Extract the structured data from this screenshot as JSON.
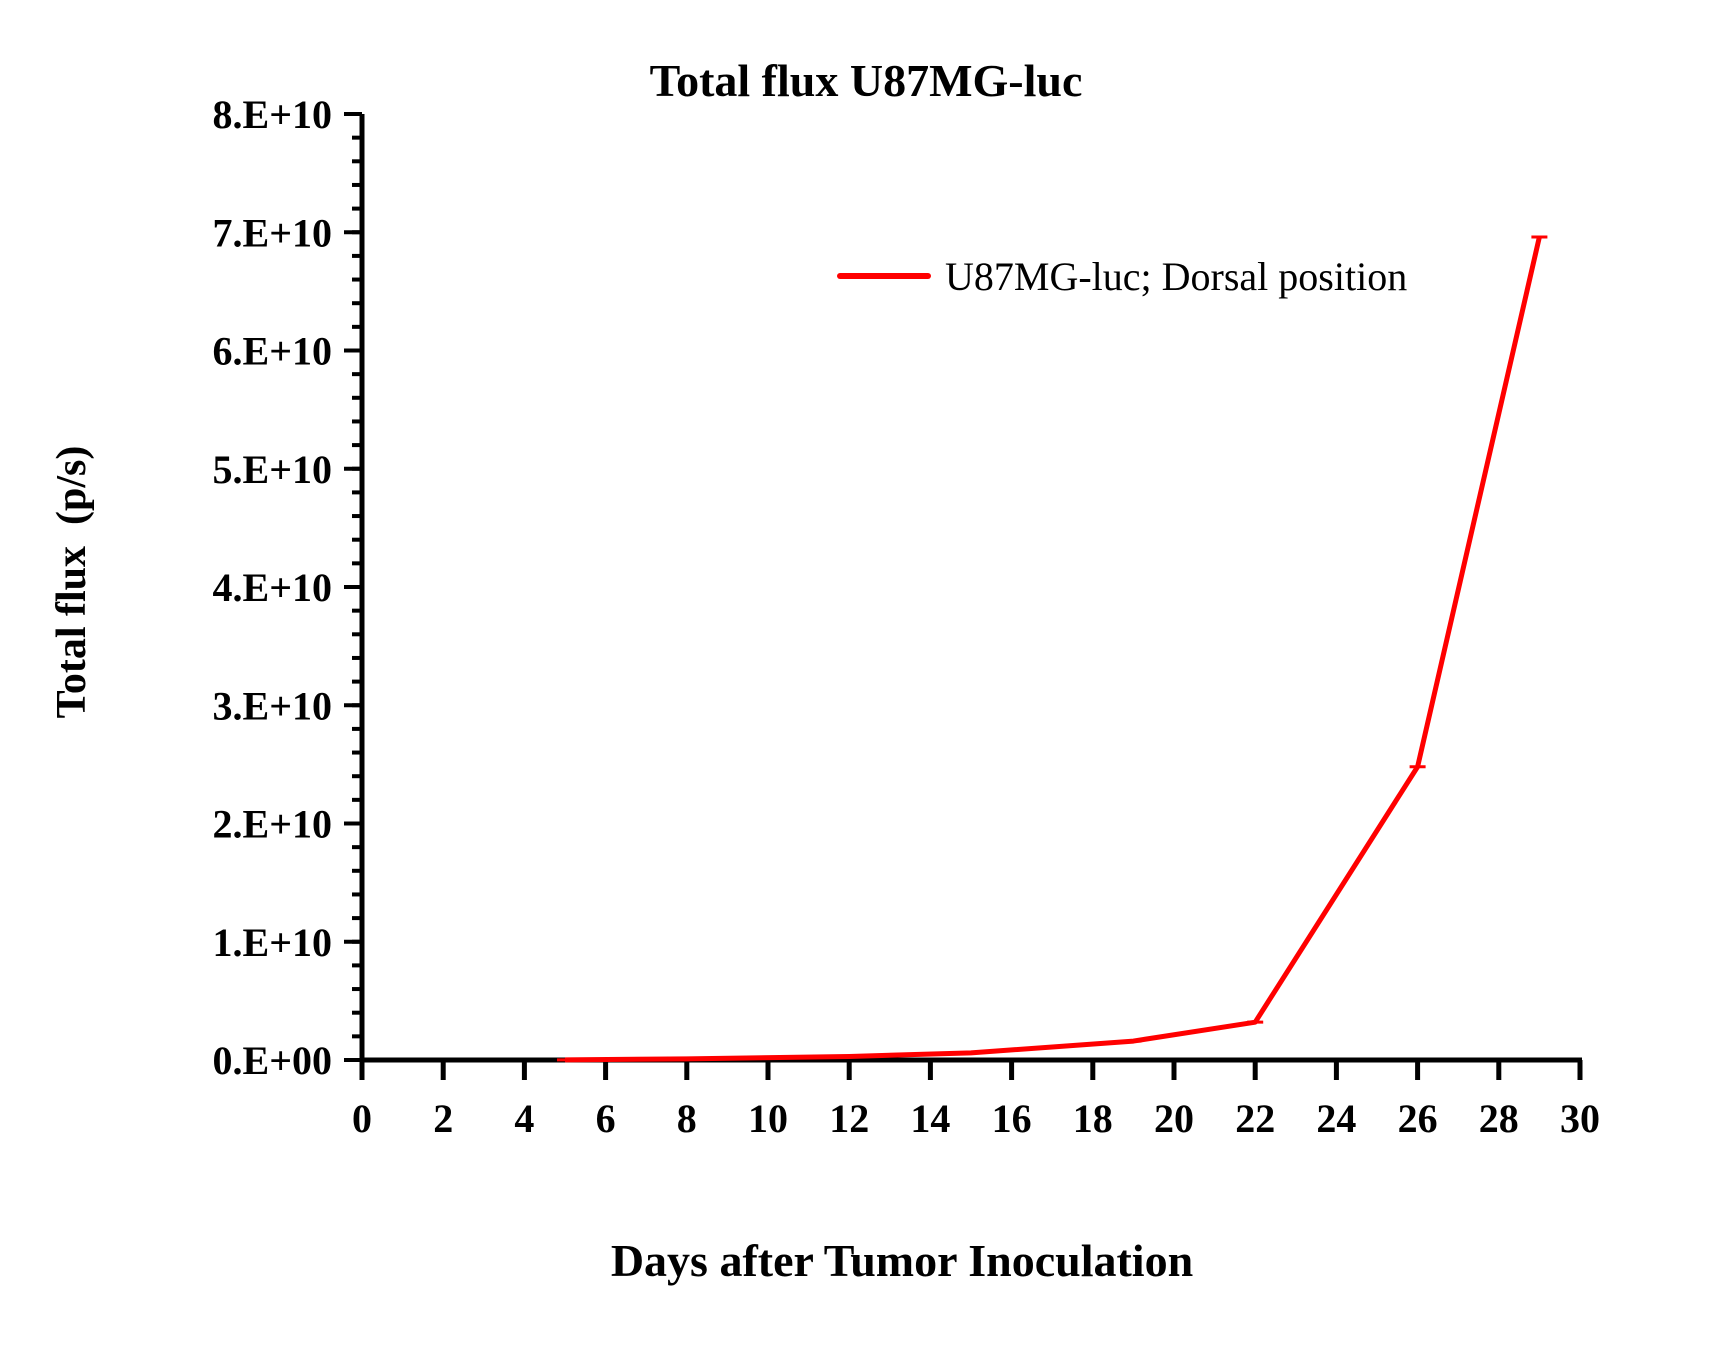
{
  "chart_data": {
    "type": "line",
    "title": "Total flux U87MG-luc",
    "xlabel": "Days after Tumor Inoculation",
    "ylabel": "Total flux  (p/s)",
    "xlim": [
      0,
      30
    ],
    "ylim": [
      0,
      80000000000
    ],
    "x_ticks": [
      0,
      2,
      4,
      6,
      8,
      10,
      12,
      14,
      16,
      18,
      20,
      22,
      24,
      26,
      28,
      30
    ],
    "x_tick_labels": [
      "0",
      "2",
      "4",
      "6",
      "8",
      "10",
      "12",
      "14",
      "16",
      "18",
      "20",
      "22",
      "24",
      "26",
      "28",
      "30"
    ],
    "y_ticks": [
      0,
      10000000000,
      20000000000,
      30000000000,
      40000000000,
      50000000000,
      60000000000,
      70000000000,
      80000000000
    ],
    "y_tick_labels": [
      "0.E+00",
      "1.E+10",
      "2.E+10",
      "3.E+10",
      "4.E+10",
      "5.E+10",
      "6.E+10",
      "7.E+10",
      "8.E+10"
    ],
    "y_minor_step": 2000000000,
    "grid": false,
    "legend_position": "top-right",
    "series": [
      {
        "name": "U87MG-luc; Dorsal position",
        "color": "#ff0000",
        "x": [
          5,
          8,
          12,
          15,
          19,
          22,
          26,
          29
        ],
        "y": [
          10000000,
          100000000,
          300000000,
          600000000,
          1600000000,
          3200000000,
          24800000000,
          69600000000
        ]
      }
    ]
  }
}
